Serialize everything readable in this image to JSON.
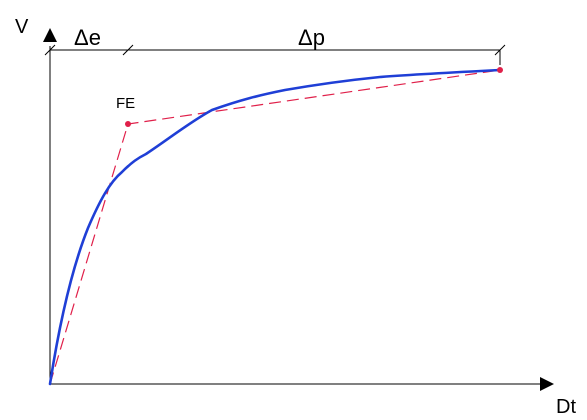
{
  "axes": {
    "y_label": "V",
    "x_label": "Dt"
  },
  "dimensions": {
    "elastic_label": "Δe",
    "plastic_label": "Δp"
  },
  "point_label": "FE",
  "colors": {
    "axis": "#000000",
    "curve": "#1f3fd6",
    "bilinear": "#e0204a",
    "background": "#ffffff"
  }
}
